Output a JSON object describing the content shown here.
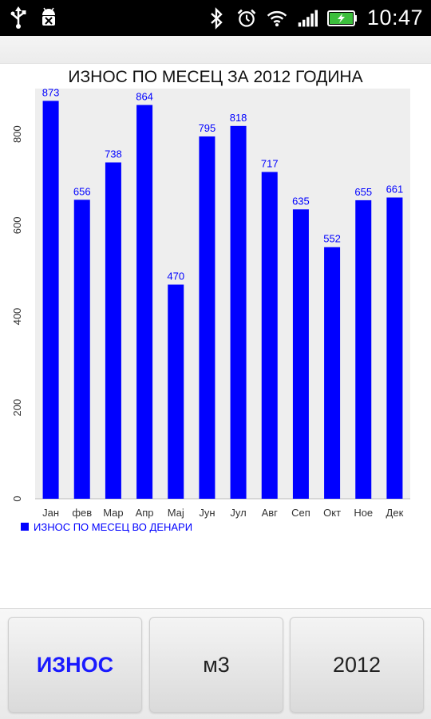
{
  "status_bar": {
    "time": "10:47",
    "icons_left": [
      "usb-icon",
      "android-debug-icon"
    ],
    "icons_right": [
      "bluetooth-icon",
      "alarm-icon",
      "wifi-icon",
      "signal-icon",
      "battery-charging-icon"
    ]
  },
  "colors": {
    "bar": "#0000ff",
    "label": "#0000ff",
    "plot_background": "#eeeeee",
    "active_button_text": "#1a1aff"
  },
  "chart_data": {
    "type": "bar",
    "title": "ИЗНОС ПО МЕСЕЦ ЗА 2012 ГОДИНА",
    "categories": [
      "Јан",
      "фев",
      "Мар",
      "Апр",
      "Мај",
      "Јун",
      "Јул",
      "Авг",
      "Сеп",
      "Окт",
      "Ное",
      "Дек"
    ],
    "series": [
      {
        "name": "ИЗНОС ПО МЕСЕЦ ВО ДЕНАРИ",
        "values": [
          873,
          656,
          738,
          864,
          470,
          795,
          818,
          717,
          635,
          552,
          655,
          661
        ]
      }
    ],
    "value_labels": [
      "873",
      "656",
      "738",
      "864",
      "470",
      "795",
      "818",
      "717",
      "635",
      "552",
      "655",
      "661"
    ],
    "y_ticks": [
      0,
      200,
      400,
      600,
      800
    ],
    "y_tick_labels": [
      "0",
      "200",
      "400",
      "600",
      "800"
    ],
    "ylim": [
      0,
      900
    ],
    "xlabel": "",
    "ylabel": "",
    "grid": false,
    "legend_position": "bottom-left"
  },
  "buttons": {
    "amount_label": "ИЗНОС",
    "m3_label": "м3",
    "year_label": "2012"
  }
}
